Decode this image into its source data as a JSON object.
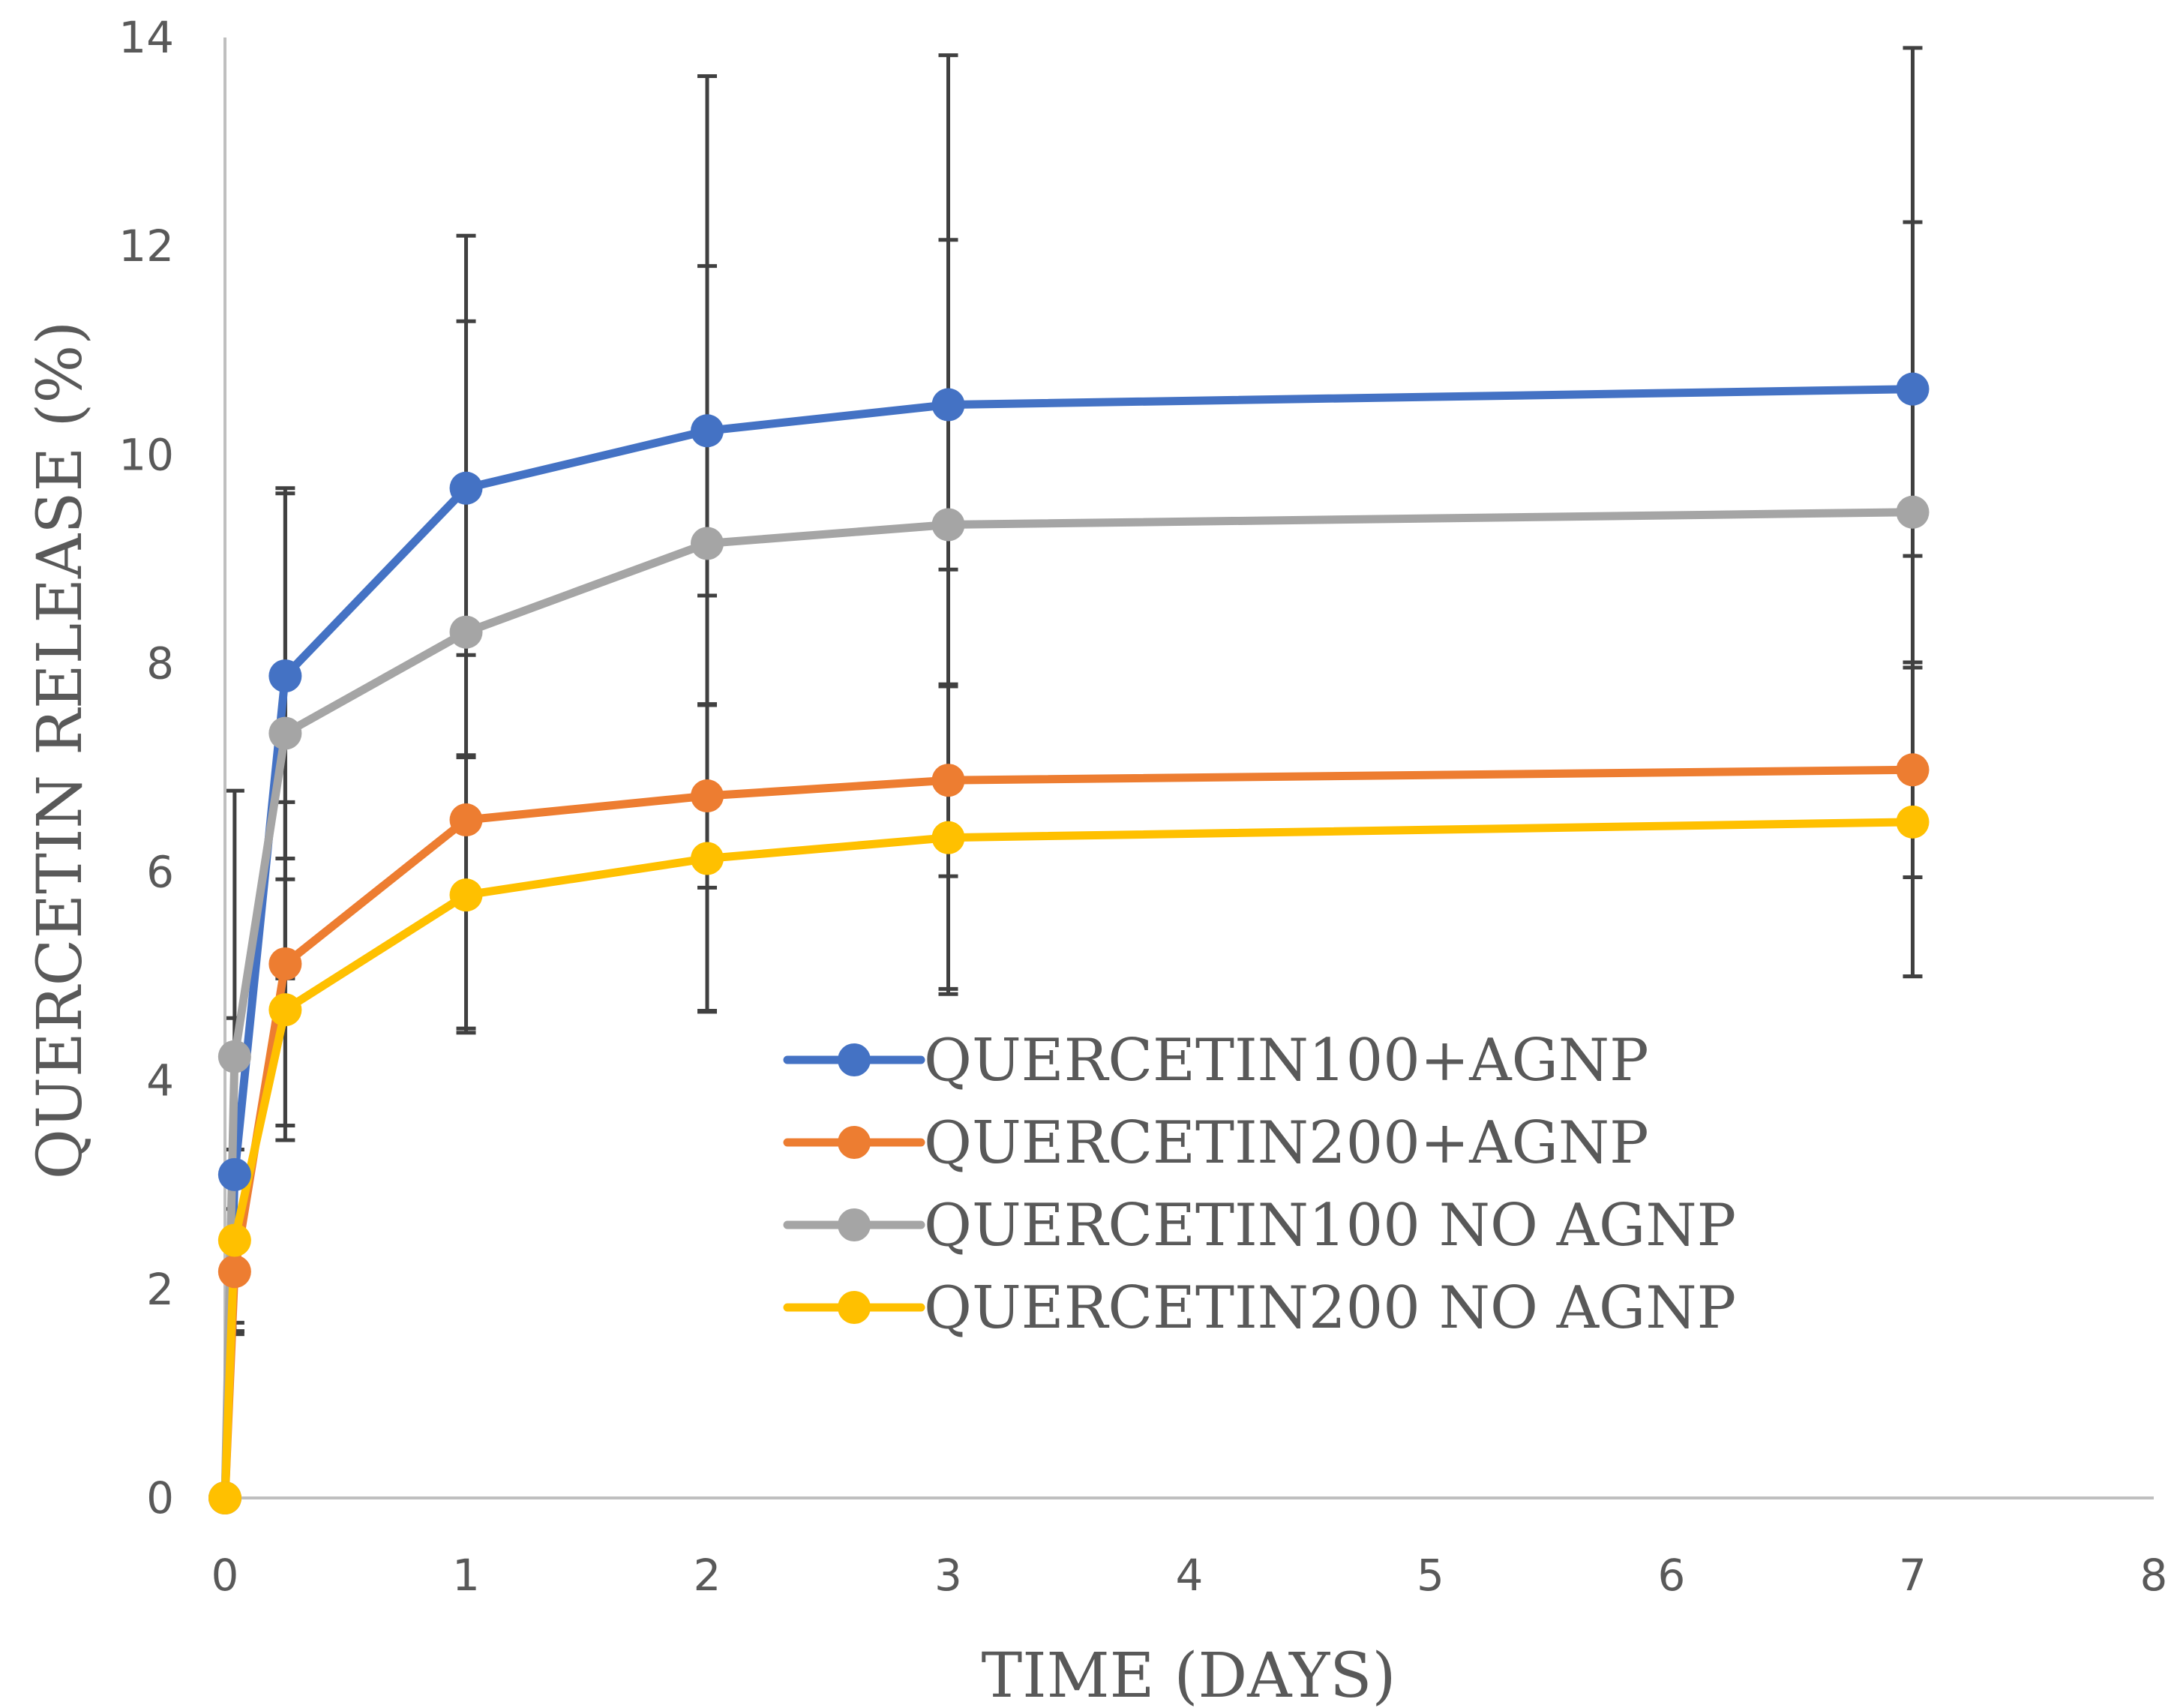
{
  "chart_data": {
    "type": "line",
    "title": "",
    "xlabel": "TIME (DAYS)",
    "ylabel": "QUERCETIN RELEASE (%)",
    "xlim": [
      0,
      8
    ],
    "ylim": [
      0,
      14
    ],
    "x_ticks": [
      0,
      1,
      2,
      3,
      4,
      5,
      6,
      7,
      8
    ],
    "y_ticks": [
      0,
      2,
      4,
      6,
      8,
      10,
      12,
      14
    ],
    "grid": false,
    "legend_position": "center-right",
    "x": [
      0,
      0.04,
      0.25,
      1,
      2,
      3,
      7
    ],
    "series": [
      {
        "name": "QUERCETIN100+AGNP",
        "color": "#4472C4",
        "values": [
          0,
          3.1,
          7.88,
          9.68,
          10.23,
          10.48,
          10.63
        ],
        "errors": [
          0,
          1.5,
          1.75,
          1.6,
          1.58,
          1.58,
          1.6
        ]
      },
      {
        "name": "QUERCETIN200+AGNP",
        "color": "#ED7D31",
        "values": [
          0,
          2.17,
          5.12,
          6.5,
          6.73,
          6.88,
          6.98
        ],
        "errors": [
          0,
          0.6,
          1.55,
          0.62,
          0.88,
          0.92,
          1.03
        ]
      },
      {
        "name": "QUERCETIN100 NO AGNP",
        "color": "#A5A5A5",
        "values": [
          0,
          4.23,
          7.33,
          8.3,
          9.15,
          9.33,
          9.45
        ],
        "errors": [
          0,
          2.55,
          2.35,
          3.8,
          4.48,
          4.5,
          4.45
        ]
      },
      {
        "name": "QUERCETIN200 NO AGNP",
        "color": "#FFC000",
        "values": [
          0,
          2.47,
          4.68,
          5.78,
          6.13,
          6.33,
          6.48
        ],
        "errors": [
          0,
          0.87,
          1.25,
          1.32,
          1.47,
          1.45,
          1.48
        ]
      }
    ]
  }
}
